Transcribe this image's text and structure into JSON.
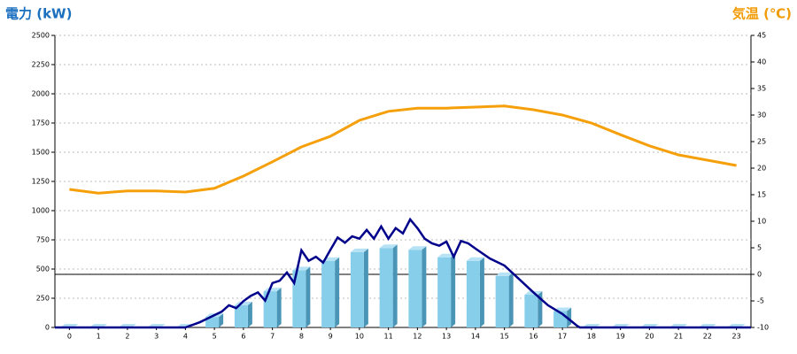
{
  "chart_data": {
    "type": "bar",
    "title": "電力 (kW)",
    "title_y2": "気温 (℃)",
    "title_color": "#1a6fbf",
    "title_y2_color": "#f29b05",
    "categories": [
      "0",
      "1",
      "2",
      "3",
      "4",
      "5",
      "6",
      "7",
      "8",
      "9",
      "10",
      "11",
      "12",
      "13",
      "14",
      "15",
      "16",
      "17",
      "18",
      "19",
      "20",
      "21",
      "22",
      "23"
    ],
    "series": [
      {
        "type": "bar",
        "color": "#87ceeb",
        "values": [
          0,
          0,
          0,
          0,
          0,
          90,
          190,
          310,
          490,
          570,
          645,
          680,
          665,
          600,
          570,
          440,
          280,
          140,
          0,
          0,
          0,
          0,
          0,
          0
        ]
      },
      {
        "type": "line",
        "color": "#00008b",
        "x": [
          -0.5,
          4,
          4.5,
          5,
          5.25,
          5.5,
          5.75,
          6,
          6.25,
          6.5,
          6.75,
          7,
          7.25,
          7.5,
          7.75,
          8,
          8.25,
          8.5,
          8.75,
          9,
          9.25,
          9.5,
          9.75,
          10,
          10.25,
          10.5,
          10.75,
          11,
          11.25,
          11.5,
          11.75,
          12,
          12.25,
          12.5,
          12.75,
          13,
          13.25,
          13.5,
          13.75,
          14,
          14.5,
          15,
          15.5,
          16,
          16.5,
          17,
          17.5,
          17.6,
          23.5
        ],
        "values": [
          0,
          0,
          45,
          105,
          135,
          190,
          165,
          225,
          270,
          300,
          230,
          380,
          400,
          470,
          380,
          660,
          570,
          605,
          555,
          665,
          770,
          725,
          780,
          760,
          835,
          760,
          865,
          760,
          850,
          805,
          925,
          850,
          760,
          720,
          700,
          735,
          605,
          740,
          720,
          675,
          590,
          530,
          415,
          300,
          190,
          115,
          15,
          0,
          0
        ]
      },
      {
        "type": "line",
        "axis": "y2",
        "color": "#f5a00a",
        "values": [
          16,
          15.3,
          15.7,
          15.7,
          15.5,
          16.2,
          18.5,
          21.2,
          24,
          26,
          29,
          30.7,
          31.3,
          31.3,
          31.5,
          31.7,
          31,
          30,
          28.5,
          26.3,
          24.2,
          22.5,
          21.5,
          20.5
        ]
      }
    ],
    "xlim": [
      -0.5,
      23.5
    ],
    "ylim": [
      0,
      2500
    ],
    "yticks": [
      0,
      250,
      500,
      750,
      1000,
      1250,
      1500,
      1750,
      2000,
      2250,
      2500
    ],
    "y2lim": [
      -10,
      45
    ],
    "y2ticks": [
      -10,
      -5,
      0,
      5,
      10,
      15,
      20,
      25,
      30,
      35,
      40,
      45
    ],
    "y2_baseline": 0,
    "grid": true
  }
}
